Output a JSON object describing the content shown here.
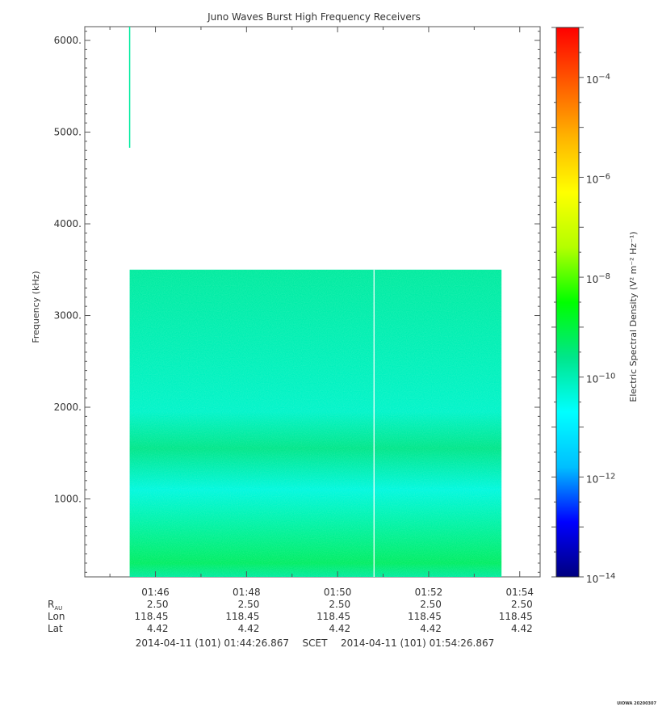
{
  "chart_data": {
    "type": "heatmap",
    "title": "Juno Waves Burst High Frequency Receivers",
    "ylabel": "Frequency (kHz)",
    "colorbar_label": "Electric Spectral Density (V² m⁻² Hz⁻¹)",
    "x_axis": {
      "unit": "time (HH:MM)",
      "range": [
        "01:44:26.867",
        "01:54:26.867"
      ],
      "ticks": [
        "01:46",
        "01:48",
        "01:50",
        "01:52",
        "01:54"
      ]
    },
    "y_axis": {
      "range": [
        150,
        6150
      ],
      "ticks": [
        "1000.",
        "2000.",
        "3000.",
        "4000.",
        "5000.",
        "6000."
      ]
    },
    "colorbar": {
      "scale": "log",
      "range_exponent": [
        -14,
        -3
      ],
      "tick_exponents": [
        -14,
        -12,
        -10,
        -8,
        -6,
        -4
      ],
      "colormap": [
        "#00007f",
        "#0000ff",
        "#00bfff",
        "#00ffff",
        "#00e68a",
        "#00ff00",
        "#b4ff00",
        "#ffff00",
        "#ffb400",
        "#ff5a00",
        "#ff0000"
      ]
    },
    "data_block": {
      "time_start": "01:45:26",
      "time_end": "01:53:36",
      "freq_min_khz": 150,
      "freq_max_khz": 3500,
      "typical_log10_density": -9.8,
      "bands": [
        {
          "freq_khz": 1100,
          "log10_density": -10.4
        },
        {
          "freq_khz": 1950,
          "log10_density": -10.2
        },
        {
          "freq_khz": 300,
          "log10_density": -9.3
        },
        {
          "freq_khz": 1550,
          "log10_density": -9.6
        }
      ]
    },
    "gap_time": "01:50:48",
    "spike": {
      "time": "01:45:26",
      "freq_min_khz": 4830,
      "freq_max_khz": 6150,
      "log10_density": -9.8
    },
    "ephemeris": {
      "rows": [
        {
          "label": "R",
          "sub": "AU",
          "values": [
            "2.50",
            "2.50",
            "2.50",
            "2.50",
            "2.50"
          ]
        },
        {
          "label": "Lon",
          "values": [
            "118.45",
            "118.45",
            "118.45",
            "118.45",
            "118.45"
          ]
        },
        {
          "label": "Lat",
          "values": [
            "4.42",
            "4.42",
            "4.42",
            "4.42",
            "4.42"
          ]
        }
      ]
    },
    "time_range_label": {
      "start": "2014-04-11 (101) 01:44:26.867",
      "middle": "SCET",
      "end": "2014-04-11 (101) 01:54:26.867"
    },
    "footer": "UIOWA 20200307"
  }
}
